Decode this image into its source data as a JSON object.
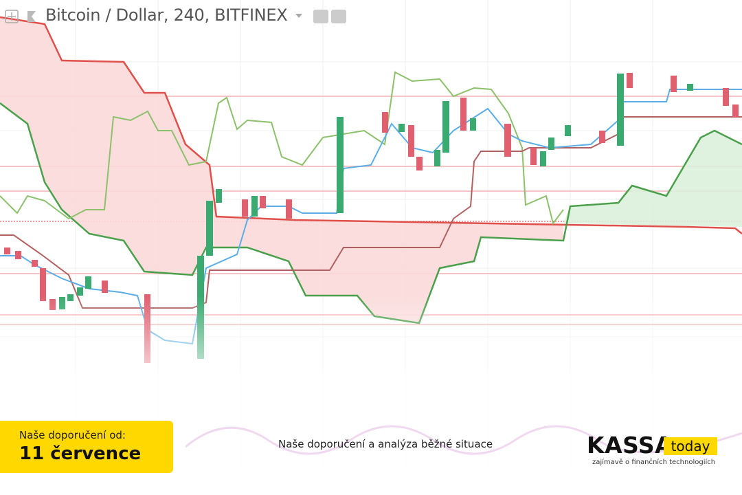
{
  "header": {
    "title": "Bitcoin / Dollar, 240, BITFINEX"
  },
  "badge": {
    "label": "Naše doporučení od:",
    "date": "11 července"
  },
  "caption": "Naše doporučení a analýza běžné situace",
  "logo": {
    "kassa": "KASSA",
    "today": "today",
    "tagline": "zajímavě o finančních technologiích"
  }
}
